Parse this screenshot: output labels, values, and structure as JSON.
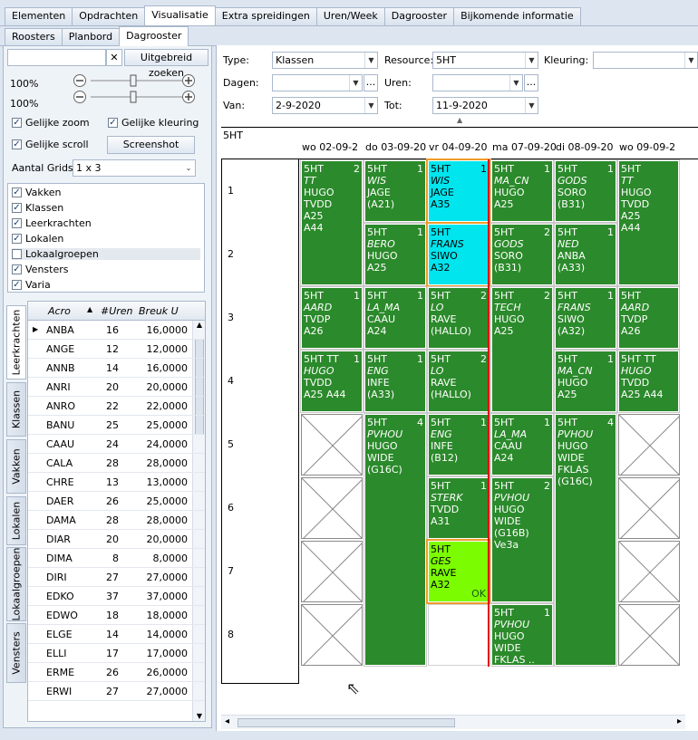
{
  "main_tabs": [
    "Elementen",
    "Opdrachten",
    "Visualisatie",
    "Extra spreidingen",
    "Uren/Week",
    "Dagrooster",
    "Bijkomende informatie"
  ],
  "sub_tabs": [
    "Roosters",
    "Planbord",
    "Dagrooster"
  ],
  "left": {
    "search_value": "",
    "advanced_search": "Uitgebreid zoeken",
    "zoom1": "100%",
    "zoom2": "100%",
    "same_zoom": "Gelijke zoom",
    "same_color": "Gelijke kleuring",
    "same_scroll": "Gelijke scroll",
    "screenshot": "Screenshot",
    "grid_count_label": "Aantal Grids",
    "grid_count_value": "1 x 3",
    "layers": [
      {
        "label": "Vakken",
        "checked": true
      },
      {
        "label": "Klassen",
        "checked": true
      },
      {
        "label": "Leerkrachten",
        "checked": true
      },
      {
        "label": "Lokalen",
        "checked": true
      },
      {
        "label": "Lokaalgroepen",
        "checked": false
      },
      {
        "label": "Vensters",
        "checked": true
      },
      {
        "label": "Varia",
        "checked": true
      }
    ],
    "vtabs": [
      "Leerkrachten",
      "Klassen",
      "Vakken",
      "Lokalen",
      "Lokaalgroepen",
      "Vensters"
    ],
    "table_headers": [
      "Acro",
      "#Uren",
      "Breuk U"
    ],
    "table_rows": [
      [
        "ANBA",
        "16",
        "16,0000"
      ],
      [
        "ANGE",
        "12",
        "12,0000"
      ],
      [
        "ANNB",
        "14",
        "16,0000"
      ],
      [
        "ANRI",
        "20",
        "20,0000"
      ],
      [
        "ANRO",
        "22",
        "22,0000"
      ],
      [
        "BANU",
        "25",
        "25,0000"
      ],
      [
        "CAAU",
        "24",
        "24,0000"
      ],
      [
        "CALA",
        "28",
        "28,0000"
      ],
      [
        "CHRE",
        "13",
        "13,0000"
      ],
      [
        "DAER",
        "26",
        "25,0000"
      ],
      [
        "DAMA",
        "28",
        "28,0000"
      ],
      [
        "DIAR",
        "20",
        "20,0000"
      ],
      [
        "DIMA",
        "8",
        "8,0000"
      ],
      [
        "DIRI",
        "27",
        "27,0000"
      ],
      [
        "EDKO",
        "37",
        "37,0000"
      ],
      [
        "EDWO",
        "18",
        "18,0000"
      ],
      [
        "ELGE",
        "14",
        "14,0000"
      ],
      [
        "ELLI",
        "17",
        "17,0000"
      ],
      [
        "ERME",
        "26",
        "26,0000"
      ],
      [
        "ERWI",
        "27",
        "27,0000"
      ]
    ]
  },
  "filters": {
    "type_label": "Type:",
    "type_value": "Klassen",
    "resource_label": "Resource:",
    "resource_value": "5HT",
    "kleuring_label": "Kleuring:",
    "kleuring_value": "",
    "dagen_label": "Dagen:",
    "dagen_value": "",
    "uren_label": "Uren:",
    "uren_value": "",
    "van_label": "Van:",
    "van_value": "2-9-2020",
    "tot_label": "Tot:",
    "tot_value": "11-9-2020"
  },
  "schedule": {
    "resource": "5HT",
    "days": [
      "wo 02-09-2",
      "do 03-09-20",
      "vr 04-09-20",
      "ma 07-09-20",
      "di 08-09-20",
      "wo 09-09-2"
    ],
    "hours": [
      "1",
      "2",
      "3",
      "4",
      "5",
      "6",
      "7",
      "8"
    ],
    "cells": [
      {
        "d": 0,
        "h": 0,
        "span": 2,
        "n": "2",
        "lines": [
          "5HT",
          "TT",
          "HUGO",
          "TVDD",
          "A25",
          "A44"
        ]
      },
      {
        "d": 0,
        "h": 2,
        "span": 1,
        "n": "1",
        "lines": [
          "5HT",
          "AARD",
          "TVDP",
          "A26"
        ]
      },
      {
        "d": 0,
        "h": 3,
        "span": 1,
        "n": "1",
        "lines": [
          "5HT  TT",
          "HUGO",
          "TVDD",
          "A25  A44"
        ]
      },
      {
        "d": 1,
        "h": 0,
        "span": 1,
        "n": "1",
        "lines": [
          "5HT",
          "WIS",
          "JAGE",
          "(A21)"
        ]
      },
      {
        "d": 1,
        "h": 1,
        "span": 1,
        "n": "1",
        "lines": [
          "5HT",
          "BERO",
          "HUGO",
          "A25"
        ]
      },
      {
        "d": 1,
        "h": 2,
        "span": 1,
        "n": "1",
        "lines": [
          "5HT",
          "LA_MA",
          "CAAU",
          "A24"
        ]
      },
      {
        "d": 1,
        "h": 3,
        "span": 1,
        "n": "1",
        "lines": [
          "5HT",
          "ENG",
          "INFE",
          "(A33)"
        ]
      },
      {
        "d": 1,
        "h": 4,
        "span": 4,
        "n": "4",
        "lines": [
          "5HT",
          "PVHOU",
          "HUGO",
          "WIDE",
          "(G16C)"
        ]
      },
      {
        "d": 2,
        "h": 0,
        "span": 1,
        "n": "1",
        "cls": "cyan",
        "lines": [
          "5HT",
          "WIS",
          "JAGE",
          "A35"
        ]
      },
      {
        "d": 2,
        "h": 1,
        "span": 1,
        "n": "",
        "cls": "cyan",
        "lines": [
          "5HT",
          "FRANS",
          "SIWO",
          "A32"
        ]
      },
      {
        "d": 2,
        "h": 2,
        "span": 1,
        "n": "2",
        "lines": [
          "5HT",
          "LO",
          "RAVE",
          "(HALLO)"
        ]
      },
      {
        "d": 2,
        "h": 3,
        "span": 1,
        "n": "2",
        "lines": [
          "5HT",
          "LO",
          "RAVE",
          "(HALLO)"
        ]
      },
      {
        "d": 2,
        "h": 4,
        "span": 1,
        "n": "1",
        "lines": [
          "5HT",
          "ENG",
          "INFE",
          "(B12)"
        ]
      },
      {
        "d": 2,
        "h": 5,
        "span": 1,
        "n": "1",
        "lines": [
          "5HT",
          "STERK",
          "TVDD",
          "A31"
        ]
      },
      {
        "d": 2,
        "h": 6,
        "span": 1,
        "n": "",
        "cls": "lime",
        "ok": "OK",
        "lines": [
          "5HT",
          "GES",
          "RAVE",
          "A32"
        ]
      },
      {
        "d": 3,
        "h": 0,
        "span": 1,
        "n": "1",
        "lines": [
          "5HT",
          "MA_CN",
          "HUGO",
          "A25"
        ]
      },
      {
        "d": 3,
        "h": 1,
        "span": 1,
        "n": "2",
        "lines": [
          "5HT",
          "GODS",
          "SORO",
          "(B31)"
        ]
      },
      {
        "d": 3,
        "h": 2,
        "span": 2,
        "n": "2",
        "lines": [
          "5HT",
          "TECH",
          "HUGO",
          "A25"
        ]
      },
      {
        "d": 3,
        "h": 4,
        "span": 1,
        "n": "1",
        "lines": [
          "5HT",
          "LA_MA",
          "CAAU",
          "A24"
        ]
      },
      {
        "d": 3,
        "h": 5,
        "span": 2,
        "n": "2",
        "lines": [
          "5HT",
          "PVHOU",
          "HUGO",
          "WIDE",
          "(G16B)",
          "Ve3a"
        ]
      },
      {
        "d": 3,
        "h": 7,
        "span": 1,
        "n": "1",
        "lines": [
          "5HT",
          "PVHOU",
          "HUGO",
          "WIDE",
          "FKLAS .."
        ]
      },
      {
        "d": 4,
        "h": 0,
        "span": 1,
        "n": "1",
        "lines": [
          "5HT",
          "GODS",
          "SORO",
          "(B31)"
        ]
      },
      {
        "d": 4,
        "h": 1,
        "span": 1,
        "n": "1",
        "lines": [
          "5HT",
          "NED",
          "ANBA",
          "(A33)"
        ]
      },
      {
        "d": 4,
        "h": 2,
        "span": 1,
        "n": "1",
        "lines": [
          "5HT",
          "FRANS",
          "SIWO",
          "(A32)"
        ]
      },
      {
        "d": 4,
        "h": 3,
        "span": 1,
        "n": "1",
        "lines": [
          "5HT",
          "MA_CN",
          "HUGO",
          "A25"
        ]
      },
      {
        "d": 4,
        "h": 4,
        "span": 4,
        "n": "4",
        "lines": [
          "5HT",
          "PVHOU",
          "HUGO",
          "WIDE",
          "FKLAS",
          "(G16C)"
        ]
      },
      {
        "d": 5,
        "h": 0,
        "span": 2,
        "n": "",
        "lines": [
          "5HT",
          "TT",
          "HUGO",
          "TVDD",
          "A25",
          "A44"
        ]
      },
      {
        "d": 5,
        "h": 2,
        "span": 1,
        "n": "",
        "lines": [
          "5HT",
          "AARD",
          "TVDP",
          "A26"
        ]
      },
      {
        "d": 5,
        "h": 3,
        "span": 1,
        "n": "",
        "lines": [
          "5HT  TT",
          "HUGO",
          "TVDD",
          "A25  A44"
        ]
      }
    ],
    "crosses": [
      {
        "d": 0,
        "h": 4
      },
      {
        "d": 0,
        "h": 5
      },
      {
        "d": 0,
        "h": 6
      },
      {
        "d": 0,
        "h": 7
      },
      {
        "d": 5,
        "h": 4
      },
      {
        "d": 5,
        "h": 5
      },
      {
        "d": 5,
        "h": 6
      },
      {
        "d": 5,
        "h": 7
      }
    ]
  }
}
